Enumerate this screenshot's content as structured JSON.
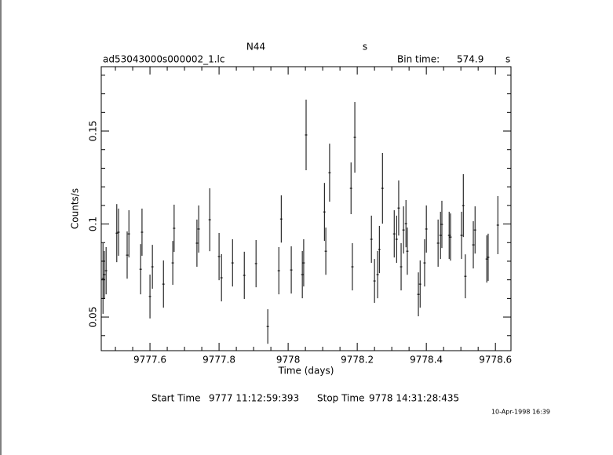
{
  "chart_data": {
    "type": "scatter",
    "title": "N44",
    "subtitle": "s",
    "file_name": "ad53043000s000002_1.lc",
    "bin_time_label": "Bin time:",
    "bin_time_value": "574.9",
    "bin_time_unit": "s",
    "x_label": "Time (days)",
    "y_label": "Counts/s",
    "start_time_label": "Start Time",
    "start_time": "9777 11:12:59:393",
    "stop_time_label": "Stop Time",
    "stop_time": "9778 14:31:28:435",
    "timestamp": "10-Apr-1998 16:39",
    "color": "#000000",
    "xlim": [
      9777.459,
      9778.645
    ],
    "ylim": [
      0.0319,
      0.1846
    ],
    "xticks": [
      9777.6,
      9777.8,
      9778,
      9778.2,
      9778.4,
      9778.6
    ],
    "yticks": [
      0.05,
      0.1,
      0.15
    ],
    "x": [
      9777.464,
      9777.468,
      9777.473,
      9777.504,
      9777.509,
      9777.534,
      9777.539,
      9777.573,
      9777.577,
      9777.6,
      9777.607,
      9777.639,
      9777.666,
      9777.67,
      9777.736,
      9777.741,
      9777.773,
      9777.8,
      9777.807,
      9777.839,
      9777.873,
      9777.907,
      9777.941,
      9777.973,
      9777.98,
      9778.009,
      9778.041,
      9778.045,
      9778.052,
      9778.105,
      9778.109,
      9778.12,
      9778.182,
      9778.186,
      9778.193,
      9778.241,
      9778.25,
      9778.259,
      9778.264,
      9778.273,
      9778.307,
      9778.314,
      9778.32,
      9778.327,
      9778.334,
      9778.341,
      9778.345,
      9778.377,
      9778.382,
      9778.395,
      9778.4,
      9778.434,
      9778.441,
      9778.445,
      9778.466,
      9778.47,
      9778.502,
      9778.507,
      9778.513,
      9778.536,
      9778.541,
      9778.575,
      9778.579,
      9778.607
    ],
    "values": [
      0.0707,
      0.0728,
      0.0749,
      0.0951,
      0.0956,
      0.0833,
      0.0947,
      0.0757,
      0.0956,
      0.061,
      0.077,
      0.0677,
      0.0791,
      0.0977,
      0.0897,
      0.0973,
      0.1023,
      0.0825,
      0.0711,
      0.0791,
      0.0724,
      0.0787,
      0.0449,
      0.0749,
      0.1027,
      0.0753,
      0.0728,
      0.0791,
      0.1479,
      0.1065,
      0.0854,
      0.1276,
      0.1192,
      0.077,
      0.1466,
      0.0918,
      0.0694,
      0.0728,
      0.0863,
      0.1192,
      0.0947,
      0.0918,
      0.1086,
      0.077,
      0.0968,
      0.1002,
      0.0854,
      0.0622,
      0.0677,
      0.0791,
      0.0973,
      0.0897,
      0.0939,
      0.0998,
      0.0939,
      0.093,
      0.0939,
      0.1099,
      0.0719,
      0.0888,
      0.0968,
      0.0812,
      0.0821,
      0.0994
    ],
    "errors": [
      0.019,
      0.0127,
      0.0127,
      0.0156,
      0.0127,
      0.0127,
      0.0127,
      0.0135,
      0.0127,
      0.0118,
      0.0118,
      0.0127,
      0.0118,
      0.0127,
      0.0127,
      0.0127,
      0.0169,
      0.0127,
      0.0127,
      0.0127,
      0.0127,
      0.0127,
      0.0093,
      0.0127,
      0.0127,
      0.0127,
      0.0127,
      0.0127,
      0.019,
      0.0156,
      0.0127,
      0.0156,
      0.0139,
      0.0127,
      0.019,
      0.0127,
      0.0118,
      0.0127,
      0.0127,
      0.019,
      0.0127,
      0.0127,
      0.0148,
      0.0127,
      0.0127,
      0.0127,
      0.0127,
      0.0118,
      0.0127,
      0.0127,
      0.0127,
      0.0127,
      0.0127,
      0.0127,
      0.0127,
      0.0127,
      0.0127,
      0.0169,
      0.0118,
      0.0127,
      0.0127,
      0.0127,
      0.0127,
      0.0156
    ]
  }
}
